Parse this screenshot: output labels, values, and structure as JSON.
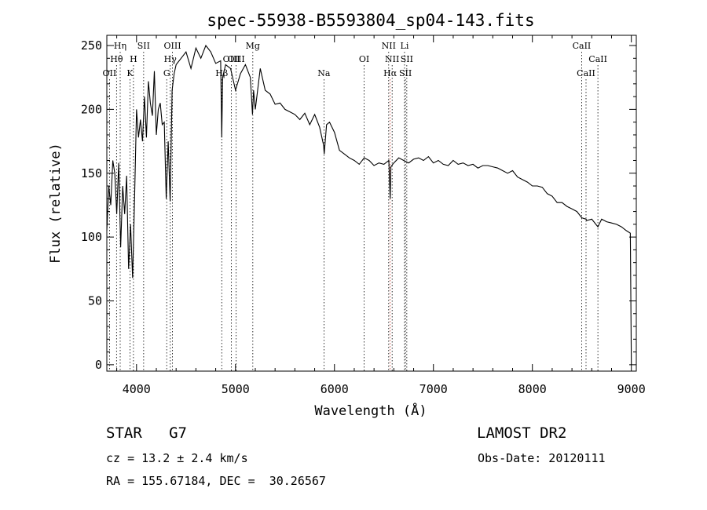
{
  "chart_data": {
    "type": "line",
    "title": "spec-55938-B5593804_sp04-143.fits",
    "xlabel": "Wavelength (Å)",
    "ylabel": "Flux (relative)",
    "xlim": [
      3700,
      9050
    ],
    "ylim": [
      -5,
      258
    ],
    "xticks": [
      4000,
      5000,
      6000,
      7000,
      8000,
      9000
    ],
    "yticks": [
      0,
      50,
      100,
      150,
      200,
      250
    ],
    "grid": false,
    "series": [
      {
        "x": [
          3700,
          3720,
          3740,
          3760,
          3780,
          3800,
          3820,
          3840,
          3860,
          3880,
          3900,
          3920,
          3940,
          3960,
          3980,
          4000,
          4020,
          4040,
          4060,
          4080,
          4100,
          4120,
          4140,
          4160,
          4180,
          4200,
          4220,
          4240,
          4260,
          4280,
          4300,
          4320,
          4340,
          4360,
          4380,
          4400,
          4450,
          4500,
          4550,
          4600,
          4650,
          4700,
          4750,
          4800,
          4850,
          4861,
          4870,
          4900,
          4950,
          5000,
          5050,
          5100,
          5150,
          5172,
          5183,
          5200,
          5250,
          5300,
          5350,
          5400,
          5450,
          5500,
          5550,
          5600,
          5650,
          5700,
          5750,
          5800,
          5850,
          5890,
          5896,
          5920,
          5950,
          6000,
          6050,
          6100,
          6150,
          6200,
          6250,
          6300,
          6350,
          6400,
          6450,
          6500,
          6550,
          6563,
          6570,
          6600,
          6650,
          6700,
          6750,
          6800,
          6850,
          6900,
          6950,
          7000,
          7050,
          7100,
          7150,
          7200,
          7250,
          7300,
          7350,
          7400,
          7450,
          7500,
          7550,
          7600,
          7650,
          7700,
          7750,
          7800,
          7850,
          7900,
          7950,
          8000,
          8050,
          8100,
          8150,
          8200,
          8250,
          8300,
          8350,
          8400,
          8450,
          8500,
          8542,
          8550,
          8600,
          8662,
          8700,
          8750,
          8800,
          8850,
          8900,
          8950,
          8990,
          9000
        ],
        "values": [
          105,
          140,
          125,
          160,
          150,
          118,
          158,
          92,
          140,
          118,
          148,
          75,
          110,
          68,
          130,
          200,
          178,
          192,
          175,
          210,
          178,
          222,
          205,
          195,
          230,
          180,
          200,
          205,
          188,
          190,
          130,
          175,
          128,
          215,
          228,
          235,
          240,
          245,
          232,
          248,
          240,
          250,
          245,
          236,
          238,
          178,
          225,
          235,
          232,
          215,
          228,
          235,
          225,
          196,
          215,
          200,
          232,
          215,
          212,
          204,
          205,
          200,
          198,
          196,
          192,
          197,
          188,
          196,
          186,
          172,
          165,
          188,
          190,
          182,
          168,
          165,
          162,
          160,
          157,
          162,
          160,
          156,
          158,
          157,
          160,
          130,
          155,
          158,
          162,
          160,
          158,
          161,
          162,
          160,
          163,
          158,
          160,
          157,
          156,
          160,
          157,
          158,
          156,
          157,
          154,
          156,
          156,
          155,
          154,
          152,
          150,
          152,
          147,
          145,
          143,
          140,
          140,
          139,
          134,
          132,
          127,
          127,
          124,
          122,
          120,
          115,
          114,
          113,
          114,
          108,
          114,
          112,
          111,
          110,
          108,
          105,
          103,
          0
        ]
      }
    ],
    "lines": [
      {
        "label": "OII",
        "x": 3727,
        "row": 3
      },
      {
        "label": "Hθ",
        "x": 3798,
        "row": 2
      },
      {
        "label": "Hη",
        "x": 3835,
        "row": 1
      },
      {
        "label": "K",
        "x": 3934,
        "row": 3
      },
      {
        "label": "H",
        "x": 3969,
        "row": 2
      },
      {
        "label": "SII",
        "x": 4072,
        "row": 1
      },
      {
        "label": "G",
        "x": 4305,
        "row": 3
      },
      {
        "label": "Hγ",
        "x": 4341,
        "row": 2
      },
      {
        "label": "OIII",
        "x": 4363,
        "row": 1
      },
      {
        "label": "Hβ",
        "x": 4861,
        "row": 3
      },
      {
        "label": "OIII",
        "x": 4959,
        "row": 2
      },
      {
        "label": "OIII",
        "x": 5007,
        "row": 2
      },
      {
        "label": "Mg",
        "x": 5175,
        "row": 1
      },
      {
        "label": "Na",
        "x": 5894,
        "row": 3
      },
      {
        "label": "OI",
        "x": 6300,
        "row": 2
      },
      {
        "label": "Hα",
        "x": 6563,
        "row": 3
      },
      {
        "label": "NII",
        "x": 6548,
        "row": 1
      },
      {
        "label": "NII",
        "x": 6583,
        "row": 2
      },
      {
        "label": "Li",
        "x": 6708,
        "row": 1
      },
      {
        "label": "SII",
        "x": 6717,
        "row": 3
      },
      {
        "label": "SII",
        "x": 6731,
        "row": 2
      },
      {
        "label": "CaII",
        "x": 8498,
        "row": 1
      },
      {
        "label": "CaII",
        "x": 8542,
        "row": 3
      },
      {
        "label": "CaII",
        "x": 8662,
        "row": 2
      }
    ]
  },
  "info": {
    "class_line": "STAR   G7",
    "survey": "LAMOST DR2",
    "cz": "cz = 13.2 ± 2.4 km/s",
    "obs_date": "Obs-Date: 20120111",
    "radec": "RA = 155.67184, DEC =  30.26567"
  }
}
